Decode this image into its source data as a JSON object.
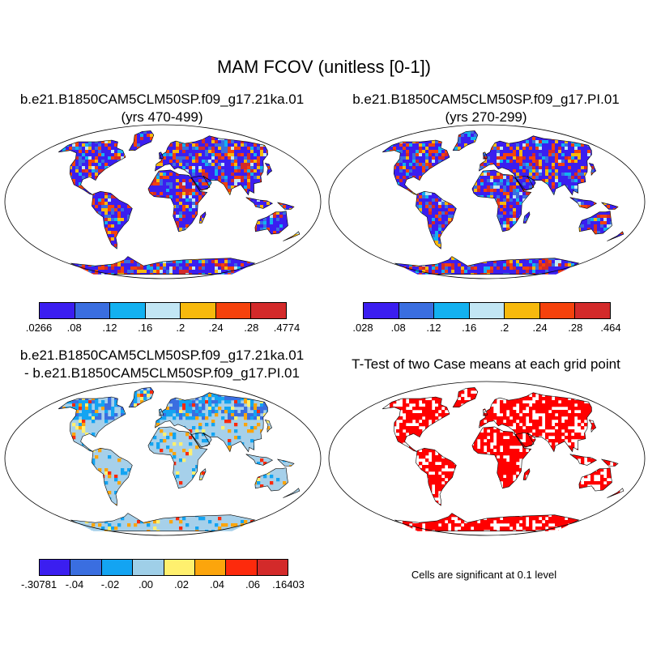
{
  "title": "MAM FCOV (unitless [0-1])",
  "panels": [
    {
      "id": "case1",
      "title_line1": "b.e21.B1850CAM5CLM50SP.f09_g17.21ka.01",
      "title_line2": "(yrs 470-499)",
      "colorbar": {
        "colors": [
          "#3b1ef0",
          "#3a6ee0",
          "#13b1f0",
          "#c2e6f4",
          "#f7b90d",
          "#f5420c",
          "#d32a2a"
        ],
        "labels": [
          ".0266",
          ".08",
          ".12",
          ".16",
          ".2",
          ".24",
          ".28",
          ".4774"
        ]
      }
    },
    {
      "id": "case2",
      "title_line1": "b.e21.B1850CAM5CLM50SP.f09_g17.PI.01",
      "title_line2": "(yrs 270-299)",
      "colorbar": {
        "colors": [
          "#3b1ef0",
          "#3a6ee0",
          "#13b1f0",
          "#c2e6f4",
          "#f7b90d",
          "#f5420c",
          "#d32a2a"
        ],
        "labels": [
          ".028",
          ".08",
          ".12",
          ".16",
          ".2",
          ".24",
          ".28",
          ".464"
        ]
      }
    },
    {
      "id": "difference",
      "title_line1": "b.e21.B1850CAM5CLM50SP.f09_g17.21ka.01",
      "title_line2": "- b.e21.B1850CAM5CLM50SP.f09_g17.PI.01",
      "colorbar": {
        "colors": [
          "#3b1ef0",
          "#3a6ee0",
          "#13a4f2",
          "#9fcfe8",
          "#fff06e",
          "#fca50c",
          "#fd2a0c",
          "#d32a2a"
        ],
        "labels": [
          "-.30781",
          "-.04",
          "-.02",
          ".00",
          ".02",
          ".04",
          ".06",
          ".16403"
        ]
      }
    },
    {
      "id": "ttest",
      "title_line1": "T-Test of two Case means at each grid point",
      "note": "Cells are significant at 0.1 level"
    }
  ],
  "map_colors": {
    "ocean": "#ffffff",
    "outline": "#000000",
    "significant": "#ff0000",
    "diff_land": "#a6d0ea"
  }
}
